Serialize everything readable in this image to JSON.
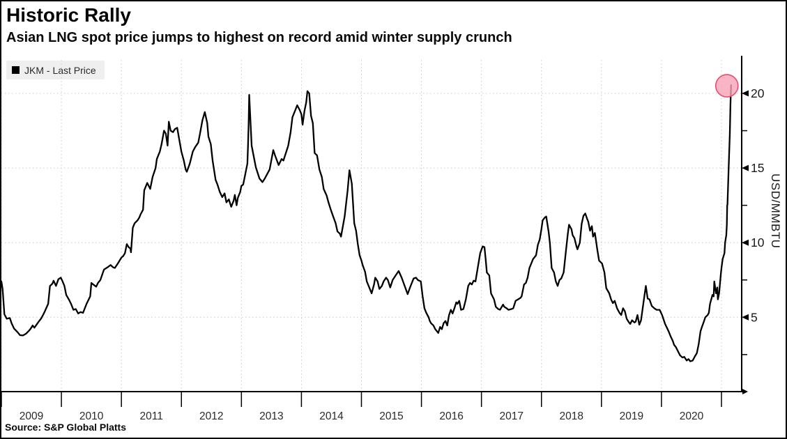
{
  "header": {
    "title": "Historic Rally",
    "subtitle": "Asian LNG spot price jumps to highest on record amid winter supply crunch"
  },
  "legend": {
    "series_label": "JKM - Last Price",
    "swatch_color": "#000000"
  },
  "footer": {
    "source": "Source: S&P Global Platts"
  },
  "chart_data": {
    "type": "line",
    "title": "Historic Rally",
    "subtitle": "Asian LNG spot price jumps to highest on record amid winter supply crunch",
    "series_name": "JKM - Last Price",
    "xlabel": "",
    "ylabel": "USD/MMBTU",
    "xlim": [
      2009.0,
      2021.35
    ],
    "ylim": [
      0,
      22.3
    ],
    "yticks_major": [
      5,
      10,
      15,
      20
    ],
    "yticks_minor": [
      2.5,
      7.5,
      12.5,
      17.5
    ],
    "xtick_boundaries": [
      2009,
      2010,
      2011,
      2012,
      2013,
      2014,
      2015,
      2016,
      2017,
      2018,
      2019,
      2020,
      2021
    ],
    "xtick_labels": [
      "2009",
      "2010",
      "2011",
      "2012",
      "2013",
      "2014",
      "2015",
      "2016",
      "2017",
      "2018",
      "2019",
      "2020"
    ],
    "grid": "dotted-both-axes",
    "legend_position": "top-left",
    "line_color": "#000000",
    "highlight_marker": {
      "x": 2021.09,
      "y": 20.65,
      "radius": 16,
      "fill": "#f7a2b6",
      "fill_opacity": 0.8,
      "stroke": "#e84d6d"
    },
    "source": "Source: S&P Global Platts",
    "points": [
      [
        2009.0,
        7.4
      ],
      [
        2009.02,
        6.9
      ],
      [
        2009.05,
        5.2
      ],
      [
        2009.09,
        4.9
      ],
      [
        2009.14,
        4.95
      ],
      [
        2009.17,
        4.6
      ],
      [
        2009.21,
        4.25
      ],
      [
        2009.27,
        4.0
      ],
      [
        2009.31,
        3.8
      ],
      [
        2009.36,
        3.78
      ],
      [
        2009.41,
        3.9
      ],
      [
        2009.46,
        4.1
      ],
      [
        2009.49,
        4.25
      ],
      [
        2009.52,
        4.45
      ],
      [
        2009.55,
        4.3
      ],
      [
        2009.62,
        4.7
      ],
      [
        2009.66,
        4.9
      ],
      [
        2009.7,
        5.2
      ],
      [
        2009.73,
        5.45
      ],
      [
        2009.78,
        5.9
      ],
      [
        2009.81,
        7.1
      ],
      [
        2009.85,
        7.25
      ],
      [
        2009.87,
        7.45
      ],
      [
        2009.91,
        7.1
      ],
      [
        2009.95,
        7.55
      ],
      [
        2009.99,
        7.65
      ],
      [
        2010.02,
        7.4
      ],
      [
        2010.05,
        7.1
      ],
      [
        2010.08,
        6.5
      ],
      [
        2010.13,
        6.15
      ],
      [
        2010.16,
        5.9
      ],
      [
        2010.2,
        5.5
      ],
      [
        2010.24,
        5.55
      ],
      [
        2010.28,
        5.25
      ],
      [
        2010.32,
        5.35
      ],
      [
        2010.36,
        5.3
      ],
      [
        2010.42,
        5.9
      ],
      [
        2010.48,
        6.4
      ],
      [
        2010.5,
        7.3
      ],
      [
        2010.53,
        7.2
      ],
      [
        2010.58,
        7.05
      ],
      [
        2010.61,
        7.3
      ],
      [
        2010.65,
        7.5
      ],
      [
        2010.71,
        8.2
      ],
      [
        2010.77,
        8.35
      ],
      [
        2010.82,
        8.5
      ],
      [
        2010.86,
        8.35
      ],
      [
        2010.89,
        8.3
      ],
      [
        2010.94,
        8.6
      ],
      [
        2010.97,
        8.8
      ],
      [
        2011.0,
        9.0
      ],
      [
        2011.03,
        9.1
      ],
      [
        2011.06,
        9.3
      ],
      [
        2011.09,
        9.9
      ],
      [
        2011.12,
        9.7
      ],
      [
        2011.15,
        9.6
      ],
      [
        2011.16,
        9.35
      ],
      [
        2011.19,
        11.0
      ],
      [
        2011.22,
        11.3
      ],
      [
        2011.27,
        11.5
      ],
      [
        2011.3,
        11.7
      ],
      [
        2011.32,
        11.9
      ],
      [
        2011.36,
        12.2
      ],
      [
        2011.38,
        13.5
      ],
      [
        2011.43,
        14.0
      ],
      [
        2011.48,
        13.6
      ],
      [
        2011.52,
        14.4
      ],
      [
        2011.57,
        15.0
      ],
      [
        2011.59,
        15.6
      ],
      [
        2011.64,
        16.1
      ],
      [
        2011.67,
        16.6
      ],
      [
        2011.71,
        17.5
      ],
      [
        2011.74,
        17.3
      ],
      [
        2011.77,
        16.5
      ],
      [
        2011.79,
        18.1
      ],
      [
        2011.82,
        17.5
      ],
      [
        2011.86,
        17.4
      ],
      [
        2011.89,
        17.6
      ],
      [
        2011.93,
        17.7
      ],
      [
        2011.96,
        17.0
      ],
      [
        2012.0,
        16.1
      ],
      [
        2012.04,
        15.5
      ],
      [
        2012.07,
        14.9
      ],
      [
        2012.09,
        14.75
      ],
      [
        2012.14,
        15.3
      ],
      [
        2012.19,
        16.1
      ],
      [
        2012.23,
        16.4
      ],
      [
        2012.28,
        16.7
      ],
      [
        2012.31,
        17.3
      ],
      [
        2012.35,
        18.2
      ],
      [
        2012.39,
        18.75
      ],
      [
        2012.43,
        18.0
      ],
      [
        2012.45,
        17.1
      ],
      [
        2012.49,
        16.6
      ],
      [
        2012.52,
        15.5
      ],
      [
        2012.57,
        14.2
      ],
      [
        2012.6,
        13.9
      ],
      [
        2012.64,
        13.4
      ],
      [
        2012.68,
        13.05
      ],
      [
        2012.72,
        13.3
      ],
      [
        2012.75,
        12.7
      ],
      [
        2012.79,
        12.9
      ],
      [
        2012.83,
        12.4
      ],
      [
        2012.87,
        12.8
      ],
      [
        2012.89,
        13.2
      ],
      [
        2012.92,
        12.5
      ],
      [
        2012.94,
        13.0
      ],
      [
        2012.98,
        13.4
      ],
      [
        2013.0,
        13.8
      ],
      [
        2013.03,
        13.9
      ],
      [
        2013.06,
        14.5
      ],
      [
        2013.1,
        15.3
      ],
      [
        2013.11,
        16.5
      ],
      [
        2013.12,
        18.0
      ],
      [
        2013.13,
        19.9
      ],
      [
        2013.17,
        16.5
      ],
      [
        2013.24,
        15.05
      ],
      [
        2013.3,
        14.3
      ],
      [
        2013.35,
        14.05
      ],
      [
        2013.39,
        14.3
      ],
      [
        2013.47,
        14.9
      ],
      [
        2013.53,
        16.2
      ],
      [
        2013.56,
        15.85
      ],
      [
        2013.62,
        15.2
      ],
      [
        2013.67,
        15.6
      ],
      [
        2013.7,
        15.5
      ],
      [
        2013.78,
        16.5
      ],
      [
        2013.82,
        17.4
      ],
      [
        2013.85,
        18.4
      ],
      [
        2013.9,
        18.9
      ],
      [
        2013.93,
        19.2
      ],
      [
        2013.97,
        18.9
      ],
      [
        2014.0,
        18.6
      ],
      [
        2014.02,
        17.9
      ],
      [
        2014.05,
        18.8
      ],
      [
        2014.08,
        19.4
      ],
      [
        2014.1,
        20.15
      ],
      [
        2014.13,
        20.0
      ],
      [
        2014.16,
        18.5
      ],
      [
        2014.19,
        18.0
      ],
      [
        2014.22,
        16.0
      ],
      [
        2014.26,
        15.85
      ],
      [
        2014.3,
        14.9
      ],
      [
        2014.34,
        14.4
      ],
      [
        2014.37,
        13.6
      ],
      [
        2014.42,
        13.15
      ],
      [
        2014.45,
        12.7
      ],
      [
        2014.49,
        12.2
      ],
      [
        2014.53,
        11.75
      ],
      [
        2014.57,
        11.3
      ],
      [
        2014.6,
        10.75
      ],
      [
        2014.64,
        10.6
      ],
      [
        2014.66,
        10.4
      ],
      [
        2014.72,
        11.75
      ],
      [
        2014.77,
        13.5
      ],
      [
        2014.79,
        14.4
      ],
      [
        2014.8,
        14.85
      ],
      [
        2014.84,
        13.95
      ],
      [
        2014.88,
        11.3
      ],
      [
        2014.91,
        10.8
      ],
      [
        2014.94,
        9.9
      ],
      [
        2014.97,
        9.15
      ],
      [
        2015.0,
        8.8
      ],
      [
        2015.02,
        8.5
      ],
      [
        2015.06,
        8.05
      ],
      [
        2015.09,
        7.4
      ],
      [
        2015.13,
        7.0
      ],
      [
        2015.15,
        6.8
      ],
      [
        2015.17,
        6.6
      ],
      [
        2015.21,
        7.2
      ],
      [
        2015.23,
        7.65
      ],
      [
        2015.27,
        7.4
      ],
      [
        2015.3,
        6.9
      ],
      [
        2015.34,
        7.1
      ],
      [
        2015.37,
        7.4
      ],
      [
        2015.41,
        7.65
      ],
      [
        2015.44,
        7.5
      ],
      [
        2015.48,
        7.0
      ],
      [
        2015.52,
        7.5
      ],
      [
        2015.57,
        7.8
      ],
      [
        2015.62,
        8.1
      ],
      [
        2015.67,
        7.65
      ],
      [
        2015.73,
        7.0
      ],
      [
        2015.77,
        6.55
      ],
      [
        2015.81,
        7.0
      ],
      [
        2015.87,
        7.6
      ],
      [
        2015.91,
        7.65
      ],
      [
        2015.94,
        7.5
      ],
      [
        2015.99,
        7.4
      ],
      [
        2016.02,
        6.4
      ],
      [
        2016.05,
        5.6
      ],
      [
        2016.08,
        5.3
      ],
      [
        2016.12,
        5.0
      ],
      [
        2016.14,
        4.75
      ],
      [
        2016.16,
        4.6
      ],
      [
        2016.2,
        4.45
      ],
      [
        2016.23,
        4.2
      ],
      [
        2016.28,
        3.95
      ],
      [
        2016.31,
        4.35
      ],
      [
        2016.34,
        4.2
      ],
      [
        2016.37,
        4.6
      ],
      [
        2016.4,
        4.75
      ],
      [
        2016.43,
        4.45
      ],
      [
        2016.46,
        5.15
      ],
      [
        2016.49,
        5.5
      ],
      [
        2016.52,
        5.25
      ],
      [
        2016.55,
        5.6
      ],
      [
        2016.58,
        6.0
      ],
      [
        2016.6,
        5.9
      ],
      [
        2016.63,
        6.1
      ],
      [
        2016.66,
        5.5
      ],
      [
        2016.7,
        5.55
      ],
      [
        2016.74,
        6.2
      ],
      [
        2016.78,
        7.1
      ],
      [
        2016.81,
        7.3
      ],
      [
        2016.84,
        7.2
      ],
      [
        2016.87,
        7.45
      ],
      [
        2016.9,
        7.4
      ],
      [
        2016.93,
        8.1
      ],
      [
        2016.98,
        9.3
      ],
      [
        2017.02,
        9.75
      ],
      [
        2017.05,
        9.7
      ],
      [
        2017.07,
        8.9
      ],
      [
        2017.09,
        8.0
      ],
      [
        2017.13,
        7.8
      ],
      [
        2017.16,
        6.6
      ],
      [
        2017.21,
        6.2
      ],
      [
        2017.24,
        5.7
      ],
      [
        2017.28,
        5.55
      ],
      [
        2017.31,
        5.5
      ],
      [
        2017.36,
        5.85
      ],
      [
        2017.38,
        5.7
      ],
      [
        2017.42,
        5.6
      ],
      [
        2017.45,
        5.5
      ],
      [
        2017.5,
        5.55
      ],
      [
        2017.53,
        5.6
      ],
      [
        2017.57,
        6.1
      ],
      [
        2017.61,
        6.2
      ],
      [
        2017.65,
        6.3
      ],
      [
        2017.67,
        6.4
      ],
      [
        2017.71,
        7.2
      ],
      [
        2017.74,
        7.3
      ],
      [
        2017.77,
        7.65
      ],
      [
        2017.8,
        8.3
      ],
      [
        2017.84,
        8.7
      ],
      [
        2017.86,
        8.9
      ],
      [
        2017.91,
        9.15
      ],
      [
        2017.94,
        9.85
      ],
      [
        2017.97,
        10.2
      ],
      [
        2018.0,
        10.9
      ],
      [
        2018.02,
        11.5
      ],
      [
        2018.06,
        11.7
      ],
      [
        2018.08,
        11.75
      ],
      [
        2018.12,
        10.7
      ],
      [
        2018.14,
        10.0
      ],
      [
        2018.17,
        8.3
      ],
      [
        2018.21,
        8.0
      ],
      [
        2018.24,
        7.4
      ],
      [
        2018.27,
        7.1
      ],
      [
        2018.3,
        7.5
      ],
      [
        2018.33,
        7.6
      ],
      [
        2018.37,
        8.0
      ],
      [
        2018.41,
        9.5
      ],
      [
        2018.44,
        10.6
      ],
      [
        2018.46,
        11.2
      ],
      [
        2018.5,
        10.9
      ],
      [
        2018.52,
        10.5
      ],
      [
        2018.55,
        10.3
      ],
      [
        2018.58,
        9.8
      ],
      [
        2018.6,
        9.55
      ],
      [
        2018.64,
        10.0
      ],
      [
        2018.67,
        11.25
      ],
      [
        2018.7,
        11.8
      ],
      [
        2018.73,
        11.95
      ],
      [
        2018.76,
        11.6
      ],
      [
        2018.78,
        11.4
      ],
      [
        2018.81,
        10.8
      ],
      [
        2018.84,
        11.1
      ],
      [
        2018.86,
        10.4
      ],
      [
        2018.89,
        10.65
      ],
      [
        2018.93,
        9.55
      ],
      [
        2018.96,
        8.8
      ],
      [
        2019.01,
        8.6
      ],
      [
        2019.05,
        8.0
      ],
      [
        2019.08,
        6.95
      ],
      [
        2019.13,
        6.6
      ],
      [
        2019.16,
        6.2
      ],
      [
        2019.19,
        5.95
      ],
      [
        2019.22,
        6.1
      ],
      [
        2019.26,
        5.6
      ],
      [
        2019.3,
        5.3
      ],
      [
        2019.33,
        5.15
      ],
      [
        2019.36,
        5.6
      ],
      [
        2019.39,
        5.4
      ],
      [
        2019.42,
        4.9
      ],
      [
        2019.45,
        4.7
      ],
      [
        2019.48,
        4.55
      ],
      [
        2019.51,
        4.8
      ],
      [
        2019.55,
        4.65
      ],
      [
        2019.57,
        4.7
      ],
      [
        2019.6,
        5.15
      ],
      [
        2019.63,
        4.5
      ],
      [
        2019.66,
        4.8
      ],
      [
        2019.71,
        6.25
      ],
      [
        2019.74,
        7.1
      ],
      [
        2019.77,
        6.25
      ],
      [
        2019.8,
        6.2
      ],
      [
        2019.84,
        5.75
      ],
      [
        2019.88,
        5.6
      ],
      [
        2019.92,
        5.5
      ],
      [
        2019.97,
        5.5
      ],
      [
        2020.01,
        5.15
      ],
      [
        2020.06,
        4.55
      ],
      [
        2020.09,
        4.3
      ],
      [
        2020.12,
        4.05
      ],
      [
        2020.15,
        3.75
      ],
      [
        2020.19,
        3.4
      ],
      [
        2020.21,
        3.15
      ],
      [
        2020.24,
        3.0
      ],
      [
        2020.29,
        2.6
      ],
      [
        2020.31,
        2.45
      ],
      [
        2020.35,
        2.3
      ],
      [
        2020.38,
        2.35
      ],
      [
        2020.42,
        2.1
      ],
      [
        2020.45,
        2.2
      ],
      [
        2020.48,
        2.05
      ],
      [
        2020.52,
        2.1
      ],
      [
        2020.56,
        2.4
      ],
      [
        2020.59,
        2.6
      ],
      [
        2020.62,
        3.2
      ],
      [
        2020.65,
        4.05
      ],
      [
        2020.67,
        4.3
      ],
      [
        2020.71,
        4.75
      ],
      [
        2020.73,
        5.0
      ],
      [
        2020.77,
        5.15
      ],
      [
        2020.79,
        5.3
      ],
      [
        2020.81,
        5.9
      ],
      [
        2020.85,
        6.5
      ],
      [
        2020.87,
        6.4
      ],
      [
        2020.88,
        7.4
      ],
      [
        2020.91,
        6.6
      ],
      [
        2020.93,
        7.0
      ],
      [
        2020.94,
        6.2
      ],
      [
        2020.96,
        6.6
      ],
      [
        2020.99,
        7.9
      ],
      [
        2021.0,
        8.3
      ],
      [
        2021.02,
        8.9
      ],
      [
        2021.05,
        9.3
      ],
      [
        2021.06,
        10.0
      ],
      [
        2021.08,
        10.5
      ],
      [
        2021.09,
        11.2
      ],
      [
        2021.095,
        12.5
      ],
      [
        2021.1,
        12.55
      ],
      [
        2021.12,
        15.0
      ],
      [
        2021.14,
        17.3
      ],
      [
        2021.15,
        19.3
      ],
      [
        2021.16,
        20.55
      ]
    ]
  },
  "axis_labels": {
    "usd_mmbtu": "USD/MMBTU"
  }
}
